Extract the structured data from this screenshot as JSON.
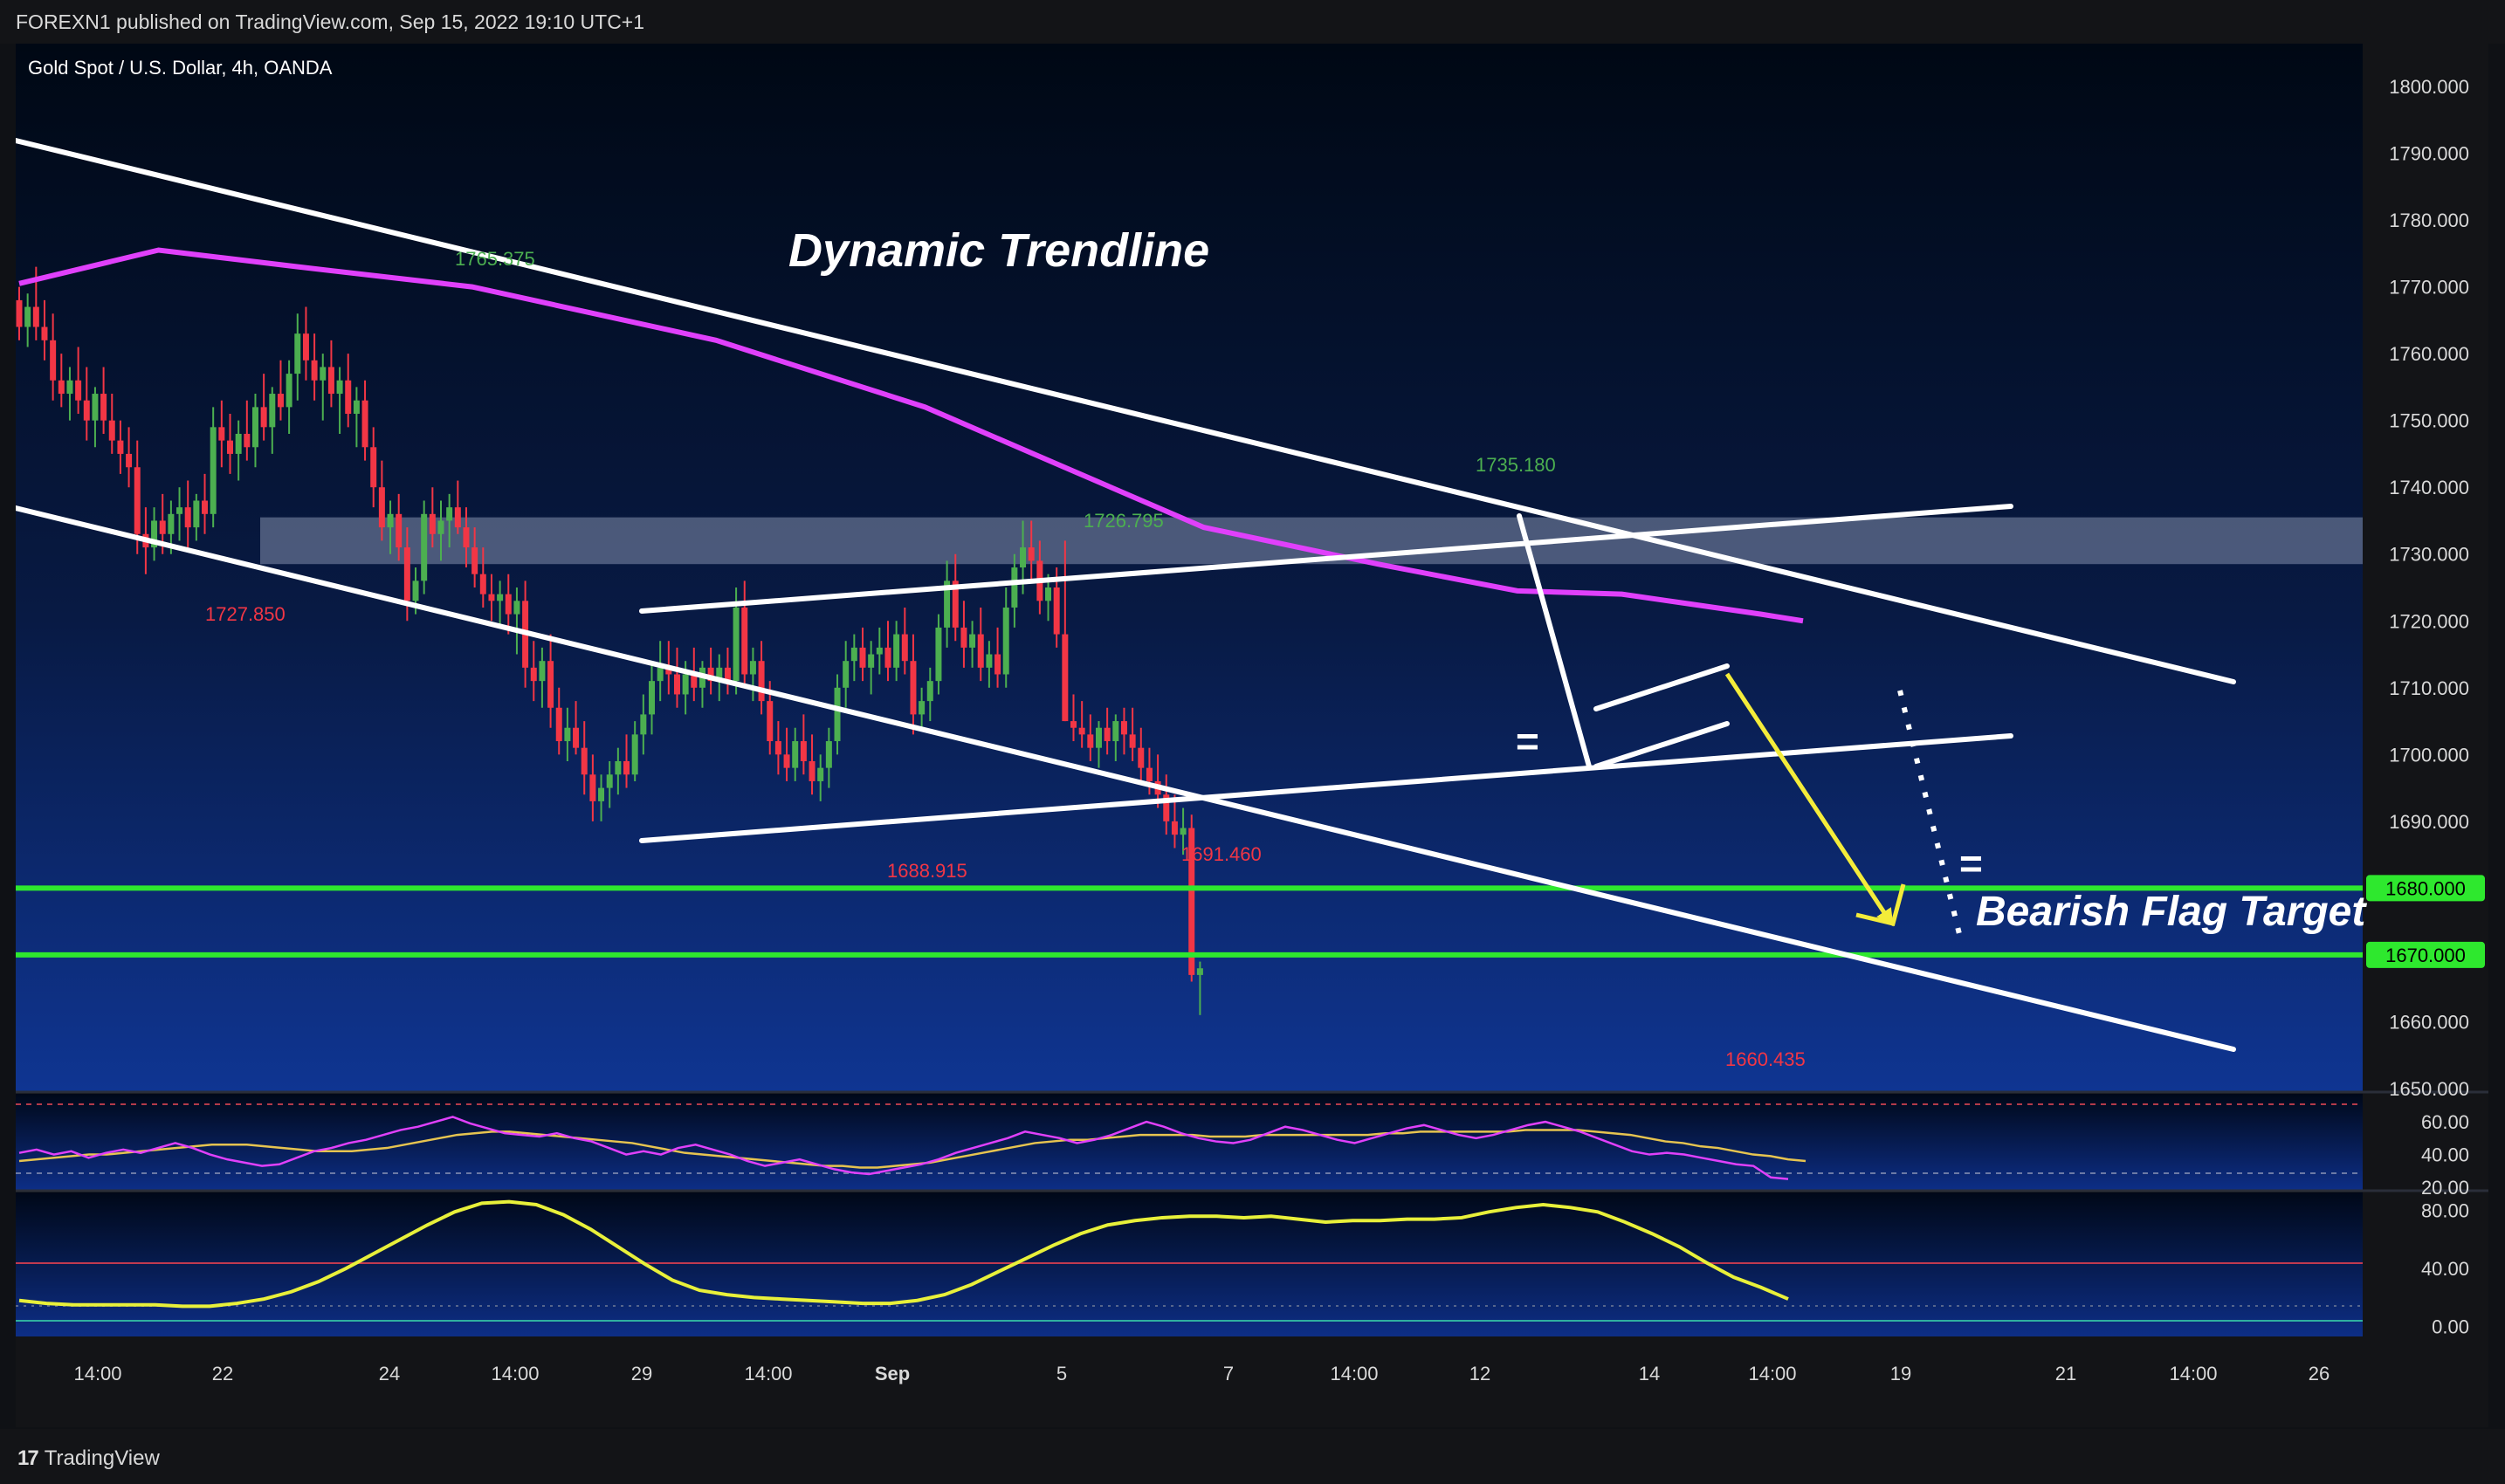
{
  "header": {
    "published": "FOREXN1 published on TradingView.com, Sep 15, 2022 19:10 UTC+1"
  },
  "footer": {
    "brand": "TradingView",
    "logo_icon": "tradingview-logo-icon"
  },
  "chart_data": {
    "type": "candlestick",
    "title": "Gold Spot / U.S. Dollar, 4h, OANDA",
    "price_axis": {
      "min": 1650,
      "max": 1800,
      "ticks": [
        "1800.000",
        "1790.000",
        "1780.000",
        "1770.000",
        "1760.000",
        "1750.000",
        "1740.000",
        "1730.000",
        "1720.000",
        "1710.000",
        "1700.000",
        "1690.000",
        "1680.000",
        "1670.000",
        "1660.000",
        "1650.000"
      ]
    },
    "time_axis": {
      "labels": [
        "14:00",
        "22",
        "24",
        "14:00",
        "29",
        "14:00",
        "Sep",
        "5",
        "7",
        "14:00",
        "12",
        "14",
        "14:00",
        "19",
        "21",
        "14:00",
        "26"
      ]
    },
    "annotations": {
      "dynamic_trendline": "Dynamic Trendline",
      "bearish_flag_target": "Bearish Flag Target",
      "equal_sign": "="
    },
    "price_labels": [
      {
        "text": "1765.375",
        "kind": "high"
      },
      {
        "text": "1727.850",
        "kind": "low"
      },
      {
        "text": "1726.795",
        "kind": "high"
      },
      {
        "text": "1735.180",
        "kind": "high"
      },
      {
        "text": "1688.915",
        "kind": "low"
      },
      {
        "text": "1691.460",
        "kind": "low"
      },
      {
        "text": "1660.435",
        "kind": "low"
      }
    ],
    "badges": [
      {
        "text": "1680.000",
        "value": 1680
      },
      {
        "text": "1670.000",
        "value": 1670
      }
    ],
    "horizontal_levels": [
      1680,
      1670
    ],
    "resistance_zone": [
      1728.5,
      1735.5
    ],
    "candles": [
      [
        1768,
        1770,
        1762,
        1764
      ],
      [
        1764,
        1769,
        1761,
        1767
      ],
      [
        1767,
        1773,
        1762,
        1764
      ],
      [
        1764,
        1768,
        1759,
        1762
      ],
      [
        1762,
        1766,
        1753,
        1756
      ],
      [
        1756,
        1760,
        1752,
        1754
      ],
      [
        1754,
        1758,
        1750,
        1756
      ],
      [
        1756,
        1761,
        1751,
        1753
      ],
      [
        1753,
        1758,
        1747,
        1750
      ],
      [
        1750,
        1755,
        1746,
        1754
      ],
      [
        1754,
        1758,
        1748,
        1750
      ],
      [
        1750,
        1754,
        1745,
        1747
      ],
      [
        1747,
        1750,
        1742,
        1745
      ],
      [
        1745,
        1749,
        1740,
        1743
      ],
      [
        1743,
        1747,
        1730,
        1733
      ],
      [
        1733,
        1737,
        1727,
        1731
      ],
      [
        1731,
        1737,
        1729,
        1735
      ],
      [
        1735,
        1739,
        1730,
        1733
      ],
      [
        1733,
        1738,
        1730,
        1736
      ],
      [
        1736,
        1740,
        1732,
        1737
      ],
      [
        1737,
        1741,
        1731,
        1734
      ],
      [
        1734,
        1739,
        1732,
        1738
      ],
      [
        1738,
        1742,
        1733,
        1736
      ],
      [
        1736,
        1752,
        1734,
        1749
      ],
      [
        1749,
        1753,
        1743,
        1747
      ],
      [
        1747,
        1751,
        1742,
        1745
      ],
      [
        1745,
        1750,
        1741,
        1748
      ],
      [
        1748,
        1753,
        1744,
        1746
      ],
      [
        1746,
        1754,
        1743,
        1752
      ],
      [
        1752,
        1757,
        1747,
        1749
      ],
      [
        1749,
        1755,
        1745,
        1754
      ],
      [
        1754,
        1759,
        1750,
        1752
      ],
      [
        1752,
        1759,
        1748,
        1757
      ],
      [
        1757,
        1766,
        1753,
        1763
      ],
      [
        1763,
        1767,
        1756,
        1759
      ],
      [
        1759,
        1763,
        1753,
        1756
      ],
      [
        1756,
        1760,
        1750,
        1758
      ],
      [
        1758,
        1762,
        1752,
        1754
      ],
      [
        1754,
        1758,
        1748,
        1756
      ],
      [
        1756,
        1760,
        1749,
        1751
      ],
      [
        1751,
        1755,
        1746,
        1753
      ],
      [
        1753,
        1756,
        1744,
        1746
      ],
      [
        1746,
        1749,
        1737,
        1740
      ],
      [
        1740,
        1744,
        1732,
        1734
      ],
      [
        1734,
        1738,
        1730,
        1736
      ],
      [
        1736,
        1739,
        1729,
        1731
      ],
      [
        1731,
        1734,
        1720,
        1723
      ],
      [
        1723,
        1728,
        1721,
        1726
      ],
      [
        1726,
        1738,
        1724,
        1736
      ],
      [
        1736,
        1740,
        1731,
        1733
      ],
      [
        1733,
        1738,
        1729,
        1735
      ],
      [
        1735,
        1739,
        1731,
        1737
      ],
      [
        1737,
        1741,
        1733,
        1734
      ],
      [
        1734,
        1737,
        1728,
        1731
      ],
      [
        1731,
        1734,
        1725,
        1727
      ],
      [
        1727,
        1731,
        1722,
        1724
      ],
      [
        1724,
        1727,
        1720,
        1723
      ],
      [
        1723,
        1726,
        1719,
        1724
      ],
      [
        1724,
        1727,
        1718,
        1721
      ],
      [
        1721,
        1725,
        1715,
        1723
      ],
      [
        1723,
        1726,
        1710,
        1713
      ],
      [
        1713,
        1717,
        1708,
        1711
      ],
      [
        1711,
        1716,
        1707,
        1714
      ],
      [
        1714,
        1718,
        1704,
        1707
      ],
      [
        1707,
        1710,
        1700,
        1702
      ],
      [
        1702,
        1707,
        1699,
        1704
      ],
      [
        1704,
        1708,
        1700,
        1701
      ],
      [
        1701,
        1705,
        1694,
        1697
      ],
      [
        1697,
        1700,
        1690,
        1693
      ],
      [
        1693,
        1697,
        1690,
        1695
      ],
      [
        1695,
        1699,
        1692,
        1697
      ],
      [
        1697,
        1701,
        1694,
        1699
      ],
      [
        1699,
        1703,
        1695,
        1697
      ],
      [
        1697,
        1705,
        1696,
        1703
      ],
      [
        1703,
        1709,
        1700,
        1706
      ],
      [
        1706,
        1714,
        1703,
        1711
      ],
      [
        1711,
        1717,
        1708,
        1713
      ],
      [
        1713,
        1717,
        1709,
        1712
      ],
      [
        1712,
        1716,
        1707,
        1709
      ],
      [
        1709,
        1714,
        1706,
        1712
      ],
      [
        1712,
        1716,
        1708,
        1710
      ],
      [
        1710,
        1714,
        1707,
        1713
      ],
      [
        1713,
        1716,
        1709,
        1711
      ],
      [
        1711,
        1715,
        1708,
        1713
      ],
      [
        1713,
        1716,
        1709,
        1711
      ],
      [
        1711,
        1725,
        1709,
        1722
      ],
      [
        1722,
        1726,
        1710,
        1712
      ],
      [
        1712,
        1716,
        1708,
        1714
      ],
      [
        1714,
        1717,
        1706,
        1708
      ],
      [
        1708,
        1711,
        1700,
        1702
      ],
      [
        1702,
        1705,
        1697,
        1700
      ],
      [
        1700,
        1704,
        1696,
        1698
      ],
      [
        1698,
        1704,
        1696,
        1702
      ],
      [
        1702,
        1706,
        1697,
        1699
      ],
      [
        1699,
        1703,
        1694,
        1696
      ],
      [
        1696,
        1700,
        1693,
        1698
      ],
      [
        1698,
        1704,
        1695,
        1702
      ],
      [
        1702,
        1712,
        1700,
        1710
      ],
      [
        1710,
        1717,
        1707,
        1714
      ],
      [
        1714,
        1718,
        1711,
        1716
      ],
      [
        1716,
        1719,
        1711,
        1713
      ],
      [
        1713,
        1717,
        1709,
        1715
      ],
      [
        1715,
        1719,
        1712,
        1716
      ],
      [
        1716,
        1720,
        1711,
        1713
      ],
      [
        1713,
        1720,
        1711,
        1718
      ],
      [
        1718,
        1722,
        1712,
        1714
      ],
      [
        1714,
        1718,
        1703,
        1706
      ],
      [
        1706,
        1710,
        1704,
        1708
      ],
      [
        1708,
        1713,
        1705,
        1711
      ],
      [
        1711,
        1721,
        1709,
        1719
      ],
      [
        1719,
        1729,
        1716,
        1726
      ],
      [
        1726,
        1730,
        1717,
        1719
      ],
      [
        1719,
        1723,
        1713,
        1716
      ],
      [
        1716,
        1720,
        1713,
        1718
      ],
      [
        1718,
        1722,
        1711,
        1713
      ],
      [
        1713,
        1717,
        1710,
        1715
      ],
      [
        1715,
        1719,
        1710,
        1712
      ],
      [
        1712,
        1725,
        1710,
        1722
      ],
      [
        1722,
        1730,
        1719,
        1728
      ],
      [
        1728,
        1735,
        1724,
        1731
      ],
      [
        1731,
        1735,
        1726,
        1729
      ],
      [
        1729,
        1732,
        1721,
        1723
      ],
      [
        1723,
        1727,
        1720,
        1725
      ],
      [
        1725,
        1728,
        1716,
        1718
      ],
      [
        1718,
        1732,
        1705,
        1705
      ],
      [
        1705,
        1709,
        1702,
        1704
      ],
      [
        1704,
        1708,
        1701,
        1703
      ],
      [
        1703,
        1706,
        1699,
        1701
      ],
      [
        1701,
        1705,
        1698,
        1704
      ],
      [
        1704,
        1707,
        1700,
        1702
      ],
      [
        1702,
        1706,
        1699,
        1705
      ],
      [
        1705,
        1707,
        1700,
        1703
      ],
      [
        1703,
        1707,
        1699,
        1701
      ],
      [
        1701,
        1704,
        1696,
        1698
      ],
      [
        1698,
        1701,
        1694,
        1696
      ],
      [
        1696,
        1700,
        1692,
        1694
      ],
      [
        1694,
        1697,
        1688,
        1690
      ],
      [
        1690,
        1694,
        1686,
        1688
      ],
      [
        1688,
        1692,
        1685,
        1689
      ],
      [
        1689,
        1691,
        1666,
        1667
      ],
      [
        1667,
        1669,
        1661,
        1668
      ]
    ],
    "sma_main": [
      [
        0,
        1770.5
      ],
      [
        40,
        1775.5
      ],
      [
        80,
        1773
      ],
      [
        130,
        1770
      ],
      [
        200,
        1762
      ],
      [
        260,
        1752
      ],
      [
        300,
        1743
      ],
      [
        340,
        1734
      ],
      [
        390,
        1728.5
      ],
      [
        430,
        1724.5
      ],
      [
        460,
        1724
      ],
      [
        480,
        1722.5
      ],
      [
        500,
        1721
      ],
      [
        512,
        1720
      ]
    ],
    "rsi": {
      "levels": [
        70,
        30
      ],
      "ticks": [
        "60.00",
        "40.00",
        "20.00"
      ],
      "min": 20,
      "max": 75,
      "values": [
        41,
        43,
        40,
        42,
        38,
        41,
        43,
        41,
        44,
        47,
        44,
        40,
        37,
        35,
        33,
        34,
        38,
        42,
        44,
        47,
        49,
        52,
        55,
        57,
        60,
        63,
        59,
        56,
        53,
        52,
        51,
        53,
        50,
        48,
        44,
        40,
        42,
        40,
        44,
        46,
        43,
        40,
        36,
        33,
        35,
        37,
        34,
        31,
        29,
        28,
        30,
        32,
        34,
        37,
        41,
        44,
        47,
        50,
        54,
        52,
        50,
        47,
        49,
        52,
        56,
        60,
        57,
        53,
        50,
        48,
        47,
        49,
        53,
        57,
        55,
        52,
        49,
        47,
        50,
        53,
        56,
        58,
        55,
        52,
        50,
        52,
        55,
        58,
        60,
        57,
        54,
        50,
        46,
        42,
        40,
        41,
        40,
        38,
        36,
        34,
        33,
        26,
        25
      ],
      "ma": [
        36,
        37,
        38,
        39,
        40,
        40,
        41,
        42,
        43,
        44,
        45,
        46,
        46,
        46,
        45,
        44,
        43,
        42,
        42,
        42,
        43,
        44,
        46,
        48,
        50,
        52,
        53,
        54,
        54,
        53,
        52,
        51,
        50,
        49,
        48,
        47,
        45,
        43,
        41,
        40,
        39,
        38,
        37,
        36,
        35,
        34,
        33,
        33,
        32,
        32,
        33,
        34,
        35,
        37,
        39,
        41,
        43,
        45,
        47,
        48,
        49,
        49,
        50,
        51,
        52,
        52,
        52,
        52,
        51,
        51,
        51,
        52,
        52,
        52,
        52,
        52,
        52,
        52,
        53,
        53,
        54,
        54,
        54,
        54,
        54,
        54,
        55,
        55,
        55,
        55,
        54,
        53,
        52,
        50,
        48,
        47,
        45,
        44,
        42,
        40,
        39,
        37,
        36
      ]
    },
    "oscillator": {
      "ticks": [
        "80.00",
        "40.00",
        "0.00"
      ],
      "levels": [
        80,
        20
      ],
      "min": -5,
      "max": 90,
      "values": [
        18,
        16,
        15,
        15,
        15,
        15,
        14,
        14,
        16,
        19,
        24,
        31,
        40,
        50,
        60,
        70,
        79,
        85,
        86,
        84,
        77,
        67,
        55,
        43,
        32,
        25,
        22,
        20,
        19,
        18,
        17,
        16,
        16,
        18,
        22,
        29,
        38,
        47,
        56,
        64,
        70,
        73,
        75,
        76,
        76,
        75,
        76,
        74,
        72,
        73,
        73,
        74,
        74,
        75,
        79,
        82,
        84,
        82,
        79,
        72,
        64,
        55,
        44,
        34,
        27,
        19
      ]
    }
  }
}
